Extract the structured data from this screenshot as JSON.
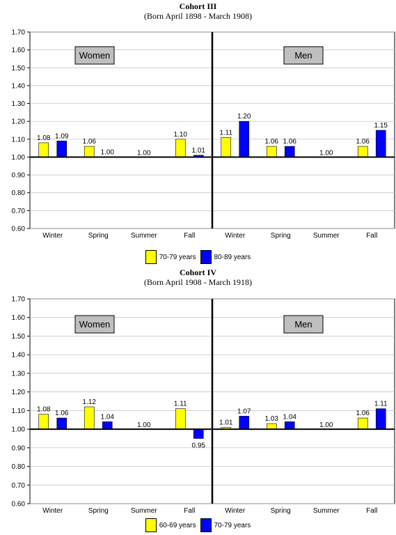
{
  "chart_data": [
    {
      "type": "bar",
      "title": "Cohort III",
      "subtitle": "(Born April 1898 - March 1908)",
      "ylim": [
        0.6,
        1.7
      ],
      "yticks": [
        "0.60",
        "0.70",
        "0.80",
        "0.90",
        "1.00",
        "1.10",
        "1.20",
        "1.30",
        "1.40",
        "1.50",
        "1.60",
        "1.70"
      ],
      "baseline": 1.0,
      "grid": true,
      "legend_position": "bottom-center",
      "categories": [
        "Winter",
        "Spring",
        "Summer",
        "Fall",
        "Winter",
        "Spring",
        "Summer",
        "Fall"
      ],
      "groups": [
        {
          "label": "Women",
          "categories": [
            "Winter",
            "Spring",
            "Summer",
            "Fall"
          ]
        },
        {
          "label": "Men",
          "categories": [
            "Winter",
            "Spring",
            "Summer",
            "Fall"
          ]
        }
      ],
      "series": [
        {
          "name": "70-79 years",
          "color": "#ffff00",
          "values": [
            1.08,
            1.06,
            1.0,
            1.1,
            1.11,
            1.06,
            1.0,
            1.06
          ],
          "labels": [
            "1.08",
            "1.06",
            "",
            "1.10",
            "1.11",
            "1.06",
            "",
            "1.06"
          ]
        },
        {
          "name": "80-89 years",
          "color": "#0000ff",
          "values": [
            1.09,
            1.0,
            1.0,
            1.01,
            1.2,
            1.06,
            1.0,
            1.15
          ],
          "labels": [
            "1.09",
            "1.00",
            "",
            "1.01",
            "1.20",
            "1.06",
            "",
            "1.15"
          ]
        }
      ],
      "category_labels": [
        "",
        "",
        "1.00",
        "",
        "",
        "",
        "1.00",
        ""
      ]
    },
    {
      "type": "bar",
      "title": "Cohort IV",
      "subtitle": "(Born April 1908 - March 1918)",
      "ylim": [
        0.6,
        1.7
      ],
      "yticks": [
        "0.60",
        "0.70",
        "0.80",
        "0.90",
        "1.00",
        "1.10",
        "1.20",
        "1.30",
        "1.40",
        "1.50",
        "1.60",
        "1.70"
      ],
      "baseline": 1.0,
      "grid": true,
      "legend_position": "bottom-center",
      "categories": [
        "Winter",
        "Spring",
        "Summer",
        "Fall",
        "Winter",
        "Spring",
        "Summer",
        "Fall"
      ],
      "groups": [
        {
          "label": "Women",
          "categories": [
            "Winter",
            "Spring",
            "Summer",
            "Fall"
          ]
        },
        {
          "label": "Men",
          "categories": [
            "Winter",
            "Spring",
            "Summer",
            "Fall"
          ]
        }
      ],
      "series": [
        {
          "name": "60-69 years",
          "color": "#ffff00",
          "values": [
            1.08,
            1.12,
            1.0,
            1.11,
            1.01,
            1.03,
            1.0,
            1.06
          ],
          "labels": [
            "1.08",
            "1.12",
            "",
            "1.11",
            "1.01",
            "1.03",
            "",
            "1.06"
          ]
        },
        {
          "name": "70-79 years",
          "color": "#0000ff",
          "values": [
            1.06,
            1.04,
            1.0,
            0.95,
            1.07,
            1.04,
            1.0,
            1.11
          ],
          "labels": [
            "1.06",
            "1.04",
            "",
            "0.95",
            "1.07",
            "1.04",
            "",
            "1.11"
          ]
        }
      ],
      "category_labels": [
        "",
        "",
        "1.00",
        "",
        "",
        "",
        "1.00",
        ""
      ]
    }
  ]
}
